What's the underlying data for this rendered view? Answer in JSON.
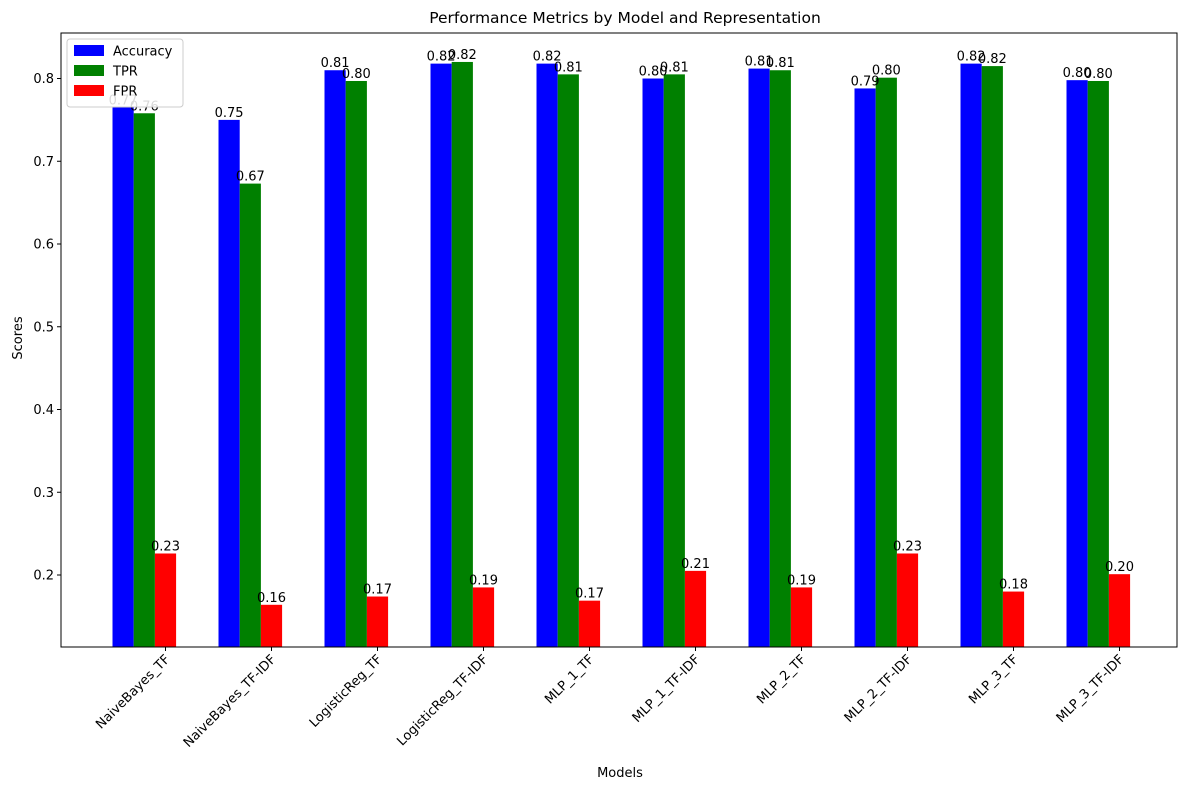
{
  "chart_data": {
    "type": "bar",
    "title": "Performance Metrics by Model and Representation",
    "xlabel": "Models",
    "ylabel": "Scores",
    "ylim": [
      0.113,
      0.855
    ],
    "yticks": [
      "0.2",
      "0.3",
      "0.4",
      "0.5",
      "0.6",
      "0.7",
      "0.8"
    ],
    "legend_position": "top-left",
    "grid": false,
    "categories": [
      "NaiveBayes_TF",
      "NaiveBayes_TF-IDF",
      "LogisticReg_TF",
      "LogisticReg_TF-IDF",
      "MLP_1_TF",
      "MLP_1_TF-IDF",
      "MLP_2_TF",
      "MLP_2_TF-IDF",
      "MLP_3_TF",
      "MLP_3_TF-IDF"
    ],
    "series": [
      {
        "name": "Accuracy",
        "color": "#0000ff",
        "values": [
          0.765,
          0.75,
          0.81,
          0.818,
          0.818,
          0.8,
          0.812,
          0.788,
          0.818,
          0.798
        ],
        "labels": [
          "0.77",
          "0.75",
          "0.81",
          "0.82",
          "0.82",
          "0.80",
          "0.81",
          "0.79",
          "0.82",
          "0.80"
        ]
      },
      {
        "name": "TPR",
        "color": "#008000",
        "values": [
          0.758,
          0.673,
          0.797,
          0.82,
          0.805,
          0.805,
          0.81,
          0.801,
          0.815,
          0.797
        ],
        "labels": [
          "0.76",
          "0.67",
          "0.80",
          "0.82",
          "0.81",
          "0.81",
          "0.81",
          "0.80",
          "0.82",
          "0.80"
        ]
      },
      {
        "name": "FPR",
        "color": "#ff0000",
        "values": [
          0.226,
          0.164,
          0.174,
          0.185,
          0.169,
          0.205,
          0.185,
          0.226,
          0.18,
          0.201
        ],
        "labels": [
          "0.23",
          "0.16",
          "0.17",
          "0.19",
          "0.17",
          "0.21",
          "0.19",
          "0.23",
          "0.18",
          "0.20"
        ]
      }
    ]
  }
}
